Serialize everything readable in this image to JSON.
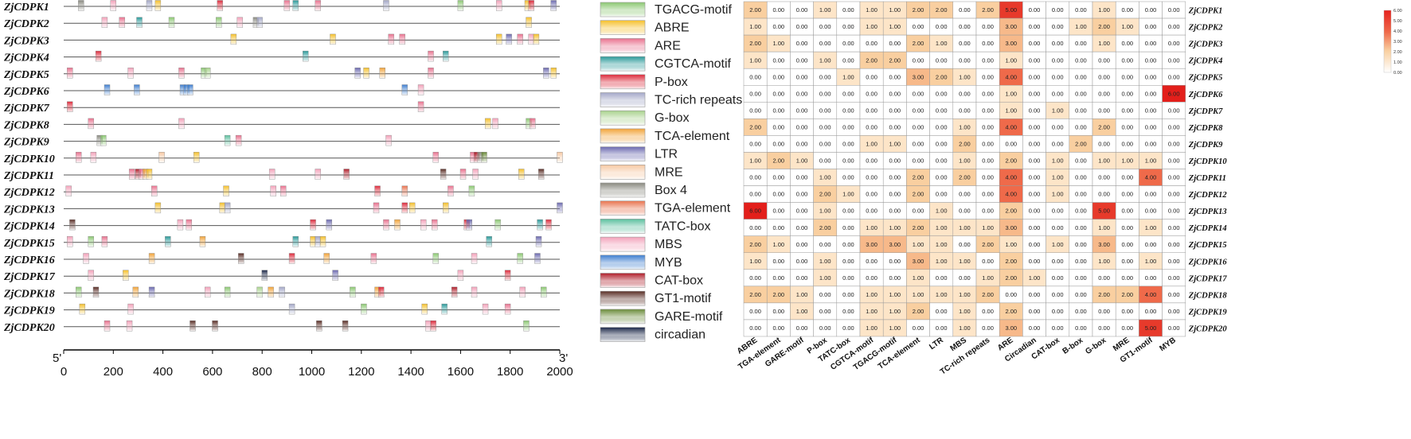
{
  "genes": [
    "ZjCDPK1",
    "ZjCDPK2",
    "ZjCDPK3",
    "ZjCDPK4",
    "ZjCDPK5",
    "ZjCDPK6",
    "ZjCDPK7",
    "ZjCDPK8",
    "ZjCDPK9",
    "ZjCDPK10",
    "ZjCDPK11",
    "ZjCDPK12",
    "ZjCDPK13",
    "ZjCDPK14",
    "ZjCDPK15",
    "ZjCDPK16",
    "ZjCDPK17",
    "ZjCDPK18",
    "ZjCDPK19",
    "ZjCDPK20"
  ],
  "axis": {
    "start_label": "5'",
    "end_label": "3'",
    "ticks": [
      0,
      200,
      400,
      600,
      800,
      1000,
      1200,
      1400,
      1600,
      1800,
      2000
    ],
    "max": 2000
  },
  "legend": [
    {
      "name": "TGACG-motif",
      "color": "#8cc872"
    },
    {
      "name": "ABRE",
      "color": "#f5c02c"
    },
    {
      "name": "ARE",
      "color": "#e9728f"
    },
    {
      "name": "CGTCA-motif",
      "color": "#2a9a9a"
    },
    {
      "name": "P-box",
      "color": "#dd2a3b"
    },
    {
      "name": "TC-rich repeats",
      "color": "#a4a8c8"
    },
    {
      "name": "G-box",
      "color": "#a9d38d"
    },
    {
      "name": "TCA-element",
      "color": "#f2a43a"
    },
    {
      "name": "LTR",
      "color": "#6c6ab0"
    },
    {
      "name": "MRE",
      "color": "#f6c8a2"
    },
    {
      "name": "Box 4",
      "color": "#8a8a80"
    },
    {
      "name": "TGA-element",
      "color": "#e8734f"
    },
    {
      "name": "TATC-box",
      "color": "#5cbf9e"
    },
    {
      "name": "MBS",
      "color": "#f3a2ba"
    },
    {
      "name": "MYB",
      "color": "#3f7fd0"
    },
    {
      "name": "CAT-box",
      "color": "#b01e2a"
    },
    {
      "name": "GT1-motif",
      "color": "#5a2e26"
    },
    {
      "name": "GARE-motif",
      "color": "#6b8c3a"
    },
    {
      "name": "circadian",
      "color": "#1e2a4a"
    }
  ],
  "motifs": [
    [
      [
        70,
        "Box 4"
      ],
      [
        200,
        "MBS"
      ],
      [
        345,
        "TC-rich repeats"
      ],
      [
        380,
        "ABRE"
      ],
      [
        630,
        "P-box"
      ],
      [
        900,
        "ARE"
      ],
      [
        935,
        "CGTCA-motif"
      ],
      [
        1025,
        "ARE"
      ],
      [
        1300,
        "TC-rich repeats"
      ],
      [
        1600,
        "TGACG-motif"
      ],
      [
        1755,
        "MBS"
      ],
      [
        1870,
        "ABRE"
      ],
      [
        1885,
        "P-box"
      ],
      [
        1975,
        "LTR"
      ]
    ],
    [
      [
        165,
        "MBS"
      ],
      [
        235,
        "ARE"
      ],
      [
        305,
        "CGTCA-motif"
      ],
      [
        435,
        "TGACG-motif"
      ],
      [
        625,
        "TGACG-motif"
      ],
      [
        710,
        "MBS"
      ],
      [
        775,
        "Box 4"
      ],
      [
        790,
        "TC-rich repeats"
      ],
      [
        1875,
        "ABRE"
      ]
    ],
    [
      [
        685,
        "ABRE"
      ],
      [
        1085,
        "ABRE"
      ],
      [
        1320,
        "ARE"
      ],
      [
        1365,
        "ARE"
      ],
      [
        1755,
        "ABRE"
      ],
      [
        1795,
        "LTR"
      ],
      [
        1840,
        "ARE"
      ],
      [
        1885,
        "MBS"
      ],
      [
        1905,
        "ABRE"
      ]
    ],
    [
      [
        140,
        "P-box"
      ],
      [
        975,
        "CGTCA-motif"
      ],
      [
        1480,
        "ARE"
      ],
      [
        1540,
        "CGTCA-motif"
      ]
    ],
    [
      [
        25,
        "ARE"
      ],
      [
        270,
        "MBS"
      ],
      [
        475,
        "ARE"
      ],
      [
        565,
        "TGACG-motif"
      ],
      [
        580,
        "G-box"
      ],
      [
        1185,
        "LTR"
      ],
      [
        1220,
        "ABRE"
      ],
      [
        1285,
        "TCA-element"
      ],
      [
        1480,
        "ARE"
      ],
      [
        1945,
        "LTR"
      ],
      [
        1975,
        "ABRE"
      ]
    ],
    [
      [
        175,
        "MYB"
      ],
      [
        295,
        "MYB"
      ],
      [
        480,
        "MYB"
      ],
      [
        495,
        "MYB"
      ],
      [
        510,
        "MYB"
      ],
      [
        1375,
        "MYB"
      ],
      [
        1440,
        "MBS"
      ]
    ],
    [
      [
        25,
        "P-box"
      ],
      [
        1440,
        "ARE"
      ]
    ],
    [
      [
        110,
        "ARE"
      ],
      [
        475,
        "MBS"
      ],
      [
        1710,
        "ABRE"
      ],
      [
        1740,
        "MBS"
      ],
      [
        1875,
        "TGACG-motif"
      ],
      [
        1890,
        "ARE"
      ]
    ],
    [
      [
        145,
        "Box 4"
      ],
      [
        160,
        "TGACG-motif"
      ],
      [
        660,
        "TATC-box"
      ],
      [
        705,
        "ARE"
      ],
      [
        1310,
        "MBS"
      ]
    ],
    [
      [
        60,
        "ARE"
      ],
      [
        120,
        "MBS"
      ],
      [
        395,
        "MRE"
      ],
      [
        535,
        "ABRE"
      ],
      [
        1500,
        "ARE"
      ],
      [
        1650,
        "ARE"
      ],
      [
        1665,
        "CAT-box"
      ],
      [
        1680,
        "Box 4"
      ],
      [
        1695,
        "GARE-motif"
      ],
      [
        2000,
        "MRE"
      ]
    ],
    [
      [
        275,
        "ARE"
      ],
      [
        300,
        "CAT-box"
      ],
      [
        315,
        "ARE"
      ],
      [
        330,
        "TCA-element"
      ],
      [
        345,
        "ABRE"
      ],
      [
        840,
        "MBS"
      ],
      [
        1025,
        "MBS"
      ],
      [
        1140,
        "CAT-box"
      ],
      [
        1530,
        "GT1-motif"
      ],
      [
        1610,
        "ARE"
      ],
      [
        1660,
        "MBS"
      ],
      [
        1845,
        "ABRE"
      ],
      [
        1925,
        "GT1-motif"
      ]
    ],
    [
      [
        20,
        "MBS"
      ],
      [
        365,
        "ARE"
      ],
      [
        655,
        "ABRE"
      ],
      [
        845,
        "MBS"
      ],
      [
        885,
        "ARE"
      ],
      [
        1265,
        "P-box"
      ],
      [
        1375,
        "TGA-element"
      ],
      [
        1560,
        "ARE"
      ],
      [
        1645,
        "TGACG-motif"
      ]
    ],
    [
      [
        380,
        "ABRE"
      ],
      [
        640,
        "ABRE"
      ],
      [
        660,
        "TC-rich repeats"
      ],
      [
        1260,
        "ARE"
      ],
      [
        1375,
        "P-box"
      ],
      [
        1405,
        "ABRE"
      ],
      [
        1540,
        "ABRE"
      ],
      [
        2000,
        "LTR"
      ]
    ],
    [
      [
        35,
        "GT1-motif"
      ],
      [
        470,
        "MBS"
      ],
      [
        505,
        "ARE"
      ],
      [
        1005,
        "P-box"
      ],
      [
        1070,
        "LTR"
      ],
      [
        1300,
        "ARE"
      ],
      [
        1345,
        "TCA-element"
      ],
      [
        1450,
        "MBS"
      ],
      [
        1495,
        "ARE"
      ],
      [
        1625,
        "P-box"
      ],
      [
        1635,
        "LTR"
      ],
      [
        1750,
        "TGACG-motif"
      ],
      [
        1920,
        "CGTCA-motif"
      ],
      [
        1955,
        "P-box"
      ]
    ],
    [
      [
        25,
        "MBS"
      ],
      [
        110,
        "TGACG-motif"
      ],
      [
        165,
        "ARE"
      ],
      [
        420,
        "CGTCA-motif"
      ],
      [
        560,
        "TCA-element"
      ],
      [
        935,
        "CGTCA-motif"
      ],
      [
        1005,
        "ABRE"
      ],
      [
        1025,
        "TC-rich repeats"
      ],
      [
        1045,
        "ABRE"
      ],
      [
        1715,
        "CGTCA-motif"
      ],
      [
        1915,
        "LTR"
      ]
    ],
    [
      [
        90,
        "MBS"
      ],
      [
        355,
        "TCA-element"
      ],
      [
        715,
        "GT1-motif"
      ],
      [
        920,
        "P-box"
      ],
      [
        1060,
        "TCA-element"
      ],
      [
        1250,
        "ARE"
      ],
      [
        1500,
        "TGACG-motif"
      ],
      [
        1655,
        "MBS"
      ],
      [
        1840,
        "TGACG-motif"
      ],
      [
        1910,
        "LTR"
      ]
    ],
    [
      [
        110,
        "MBS"
      ],
      [
        250,
        "ABRE"
      ],
      [
        810,
        "circadian"
      ],
      [
        1095,
        "LTR"
      ],
      [
        1600,
        "MBS"
      ],
      [
        1790,
        "P-box"
      ]
    ],
    [
      [
        60,
        "TGACG-motif"
      ],
      [
        130,
        "GT1-motif"
      ],
      [
        290,
        "TCA-element"
      ],
      [
        355,
        "LTR"
      ],
      [
        580,
        "MBS"
      ],
      [
        660,
        "TGACG-motif"
      ],
      [
        790,
        "G-box"
      ],
      [
        835,
        "TCA-element"
      ],
      [
        880,
        "TC-rich repeats"
      ],
      [
        1165,
        "TGACG-motif"
      ],
      [
        1265,
        "TCA-element"
      ],
      [
        1280,
        "P-box"
      ],
      [
        1575,
        "CAT-box"
      ],
      [
        1655,
        "MBS"
      ],
      [
        1850,
        "MBS"
      ],
      [
        1935,
        "TGACG-motif"
      ]
    ],
    [
      [
        75,
        "ABRE"
      ],
      [
        270,
        "MBS"
      ],
      [
        920,
        "TC-rich repeats"
      ],
      [
        1210,
        "TGACG-motif"
      ],
      [
        1455,
        "ABRE"
      ],
      [
        1535,
        "CGTCA-motif"
      ],
      [
        1700,
        "MBS"
      ],
      [
        1790,
        "ARE"
      ]
    ],
    [
      [
        175,
        "ARE"
      ],
      [
        265,
        "MBS"
      ],
      [
        520,
        "GT1-motif"
      ],
      [
        610,
        "GT1-motif"
      ],
      [
        1030,
        "GT1-motif"
      ],
      [
        1135,
        "GT1-motif"
      ],
      [
        1470,
        "MBS"
      ],
      [
        1490,
        "P-box"
      ],
      [
        1865,
        "TGACG-motif"
      ]
    ]
  ],
  "heatmap": {
    "columns": [
      "ABRE",
      "TGA-element",
      "GARE-motif",
      "P-box",
      "TATC-box",
      "CGTCA-motif",
      "TGACG-motif",
      "TCA-element",
      "LTR",
      "MBS",
      "TC-rich repeats",
      "ARE",
      "Circadian",
      "CAT-box",
      "B-box",
      "G-box",
      "MRE",
      "GT1-motif",
      "MYB"
    ],
    "values": [
      [
        2,
        0,
        0,
        1,
        0,
        1,
        1,
        2,
        2,
        0,
        2,
        5,
        0,
        0,
        0,
        1,
        0,
        0,
        0
      ],
      [
        1,
        0,
        0,
        0,
        0,
        1,
        1,
        0,
        0,
        0,
        0,
        3,
        0,
        0,
        1,
        2,
        1,
        0,
        0
      ],
      [
        2,
        1,
        0,
        0,
        0,
        0,
        0,
        2,
        1,
        0,
        0,
        3,
        0,
        0,
        0,
        1,
        0,
        0,
        0
      ],
      [
        1,
        0,
        0,
        1,
        0,
        2,
        2,
        0,
        0,
        0,
        0,
        1,
        0,
        0,
        0,
        0,
        0,
        0,
        0
      ],
      [
        0,
        0,
        0,
        0,
        1,
        0,
        0,
        3,
        2,
        1,
        0,
        4,
        0,
        0,
        0,
        0,
        0,
        0,
        0
      ],
      [
        0,
        0,
        0,
        0,
        0,
        0,
        0,
        0,
        0,
        0,
        0,
        1,
        0,
        0,
        0,
        0,
        0,
        0,
        6
      ],
      [
        0,
        0,
        0,
        0,
        0,
        0,
        0,
        0,
        0,
        0,
        0,
        1,
        0,
        1,
        0,
        0,
        0,
        0,
        0
      ],
      [
        2,
        0,
        0,
        0,
        0,
        0,
        0,
        0,
        0,
        1,
        0,
        4,
        0,
        0,
        0,
        2,
        0,
        0,
        0
      ],
      [
        0,
        0,
        0,
        0,
        0,
        1,
        1,
        0,
        0,
        2,
        0,
        0,
        0,
        0,
        2,
        0,
        0,
        0,
        0
      ],
      [
        1,
        2,
        1,
        0,
        0,
        0,
        0,
        0,
        0,
        1,
        0,
        2,
        0,
        1,
        0,
        1,
        1,
        1,
        0
      ],
      [
        0,
        0,
        0,
        1,
        0,
        0,
        0,
        2,
        0,
        2,
        0,
        4,
        0,
        1,
        0,
        0,
        0,
        4,
        0
      ],
      [
        0,
        0,
        0,
        2,
        1,
        0,
        0,
        2,
        0,
        0,
        0,
        4,
        0,
        1,
        0,
        0,
        0,
        0,
        0
      ],
      [
        6,
        0,
        0,
        1,
        0,
        0,
        0,
        0,
        1,
        0,
        0,
        2,
        0,
        0,
        0,
        5,
        0,
        0,
        0
      ],
      [
        0,
        0,
        0,
        2,
        0,
        1,
        1,
        2,
        1,
        1,
        1,
        3,
        0,
        0,
        0,
        1,
        0,
        1,
        0
      ],
      [
        2,
        1,
        0,
        0,
        0,
        3,
        3,
        1,
        1,
        0,
        2,
        1,
        0,
        1,
        0,
        3,
        0,
        0,
        0
      ],
      [
        1,
        0,
        0,
        1,
        0,
        0,
        0,
        3,
        1,
        1,
        0,
        2,
        0,
        0,
        0,
        1,
        0,
        1,
        0
      ],
      [
        0,
        0,
        0,
        1,
        0,
        0,
        0,
        1,
        0,
        0,
        1,
        2,
        1,
        0,
        0,
        0,
        0,
        0,
        0
      ],
      [
        2,
        2,
        1,
        0,
        0,
        1,
        1,
        1,
        1,
        1,
        2,
        0,
        0,
        0,
        0,
        2,
        2,
        4,
        0
      ],
      [
        0,
        0,
        1,
        0,
        0,
        1,
        1,
        2,
        0,
        1,
        0,
        2,
        0,
        0,
        0,
        0,
        0,
        0,
        0
      ],
      [
        0,
        0,
        0,
        0,
        0,
        1,
        1,
        0,
        0,
        1,
        0,
        3,
        0,
        0,
        0,
        0,
        0,
        5,
        0
      ]
    ],
    "color_scale": {
      "ticks": [
        "6.00",
        "5.00",
        "4.00",
        "3.00",
        "2.00",
        "1.00",
        "0.00"
      ],
      "low": "#ffffff",
      "high": "#e5221f"
    }
  }
}
